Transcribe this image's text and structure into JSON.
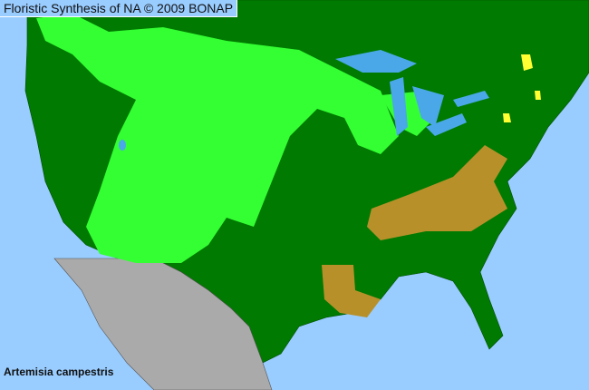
{
  "header": {
    "title": "Floristic Synthesis of NA © 2009 BONAP"
  },
  "map": {
    "species": "Artemisia campestris",
    "colors": {
      "ocean": "#99ccff",
      "lakes": "#4aa8e8",
      "present_native": "#33ff33",
      "absent_region": "#007a00",
      "rare": "#b8902a",
      "noxious_or_extirpated": "#ffff33",
      "mexico": "#aaaaaa"
    }
  }
}
